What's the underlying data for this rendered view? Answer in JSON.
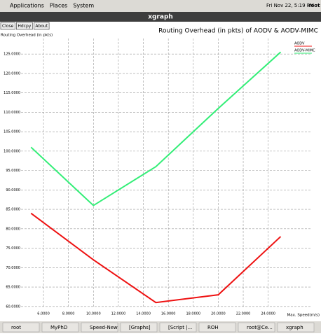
{
  "top_panel": {
    "menus": [
      "Applications",
      "Places",
      "System"
    ],
    "clock": "Fri Nov 22,  5:19 PM",
    "user": "root"
  },
  "window": {
    "title": "xgraph",
    "buttons": [
      "Close",
      "Hdcpy",
      "About"
    ]
  },
  "chart_data": {
    "type": "line",
    "title": "Routing Overhead (in pkts) of  AODV & AODV-MIMC",
    "y_label": "Routing Overhead (in pkts)",
    "x_label": "Max. Speed(m/s)",
    "x": [
      5,
      10,
      15,
      20,
      25
    ],
    "series": [
      {
        "name": "AODV",
        "color": "#ee1111",
        "values": [
          84,
          72,
          61,
          63,
          78
        ]
      },
      {
        "name": "AODV-MIMC",
        "color": "#33ee77",
        "values": [
          101,
          86,
          96,
          111,
          125.5
        ]
      }
    ],
    "xlim": [
      4.2,
      27.5
    ],
    "ylim": [
      59.6,
      129
    ],
    "xticks": [
      {
        "value": 6,
        "label": "6.0000"
      },
      {
        "value": 8,
        "label": "8.0000"
      },
      {
        "value": 10,
        "label": "10.0000"
      },
      {
        "value": 12,
        "label": "12.0000"
      },
      {
        "value": 14,
        "label": "14.0000"
      },
      {
        "value": 16,
        "label": "16.0000"
      },
      {
        "value": 18,
        "label": "18.0000"
      },
      {
        "value": 20,
        "label": "20.0000"
      },
      {
        "value": 22,
        "label": "22.0000"
      },
      {
        "value": 24,
        "label": "24.0000"
      }
    ],
    "yticks": [
      {
        "value": 60,
        "label": "60.0000"
      },
      {
        "value": 65,
        "label": "65.0000"
      },
      {
        "value": 70,
        "label": "70.0000"
      },
      {
        "value": 75,
        "label": "75.0000"
      },
      {
        "value": 80,
        "label": "80.0000"
      },
      {
        "value": 85,
        "label": "85.0000"
      },
      {
        "value": 90,
        "label": "90.0000"
      },
      {
        "value": 95,
        "label": "95.0000"
      },
      {
        "value": 100,
        "label": "100.0000"
      },
      {
        "value": 105,
        "label": "105.0000"
      },
      {
        "value": 110,
        "label": "110.0000"
      },
      {
        "value": 115,
        "label": "115.0000"
      },
      {
        "value": 120,
        "label": "120.0000"
      },
      {
        "value": 125,
        "label": "125.0000"
      }
    ],
    "grid": true
  },
  "taskbar": [
    "root",
    "MyPhD",
    "Speed-New",
    "[Graphs]",
    "[Script |...",
    "ROH",
    "root@Ce...",
    "xgraph"
  ]
}
